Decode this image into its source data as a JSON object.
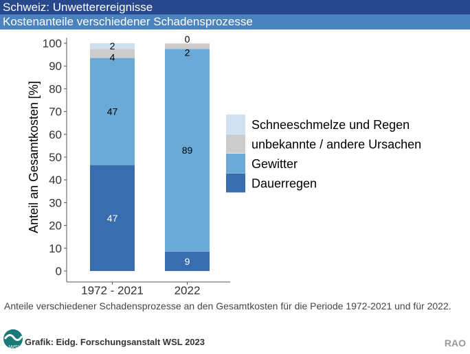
{
  "header": {
    "title": "Schweiz: Unwetterereignisse",
    "subtitle": "Kostenanteile verschiedener Schadensprozesse"
  },
  "caption": "Anteile verschiedener Schadensprozesse an den Gesamtkosten für die Periode 1972-2021 und für 2022.",
  "source": "Grafik: Eidg. Forschungsanstalt WSL 2023",
  "corner": "RAO",
  "logo_text": "WSL",
  "chart_data": {
    "type": "bar",
    "stacked": true,
    "title": "Kostenanteile verschiedener Schadensprozesse",
    "xlabel": "",
    "ylabel": "Anteil an Gesamtkosten [%]",
    "ylim": [
      0,
      100
    ],
    "yticks": [
      0,
      10,
      20,
      30,
      40,
      50,
      60,
      70,
      80,
      90,
      100
    ],
    "categories": [
      "1972 - 2021",
      "2022"
    ],
    "legend_position": "right",
    "series": [
      {
        "name": "Dauerregen",
        "color": "#3a6cb0",
        "label_color": "#ffffff",
        "values": [
          46.5,
          8.5
        ],
        "labels": [
          "47",
          "9"
        ]
      },
      {
        "name": "Gewitter",
        "color": "#6baad6",
        "label_color": "#000000",
        "values": [
          47,
          89
        ],
        "labels": [
          "47",
          "89"
        ]
      },
      {
        "name": "unbekannte / andere Ursachen",
        "color": "#cccccc",
        "label_color": "#000000",
        "values": [
          4,
          2.3
        ],
        "labels": [
          "4",
          "2"
        ]
      },
      {
        "name": "Schneeschmelze und Regen",
        "color": "#cfe0f1",
        "label_color": "#000000",
        "values": [
          2.5,
          0.2
        ],
        "labels": [
          "2",
          "0"
        ]
      }
    ]
  }
}
